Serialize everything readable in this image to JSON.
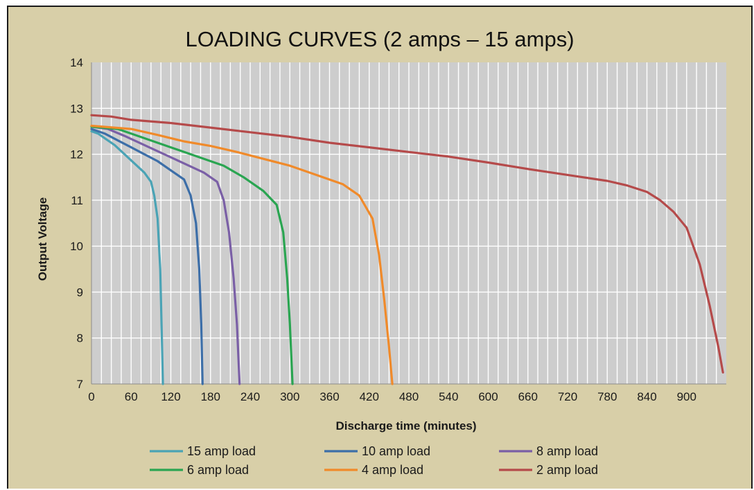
{
  "chart_data": {
    "type": "line",
    "title": "LOADING CURVES (2 amps – 15 amps)",
    "xlabel": "Discharge time (minutes)",
    "ylabel": "Output Voltage",
    "xlim": [
      0,
      960
    ],
    "ylim": [
      7,
      14
    ],
    "x_ticks": [
      "0",
      "60",
      "120",
      "180",
      "240",
      "300",
      "360",
      "420",
      "480",
      "540",
      "600",
      "660",
      "720",
      "780",
      "840",
      "900"
    ],
    "x_tick_values": [
      0,
      60,
      120,
      180,
      240,
      300,
      360,
      420,
      480,
      540,
      600,
      660,
      720,
      780,
      840,
      900
    ],
    "y_ticks": [
      "7",
      "8",
      "9",
      "10",
      "11",
      "12",
      "13",
      "14"
    ],
    "y_tick_values": [
      7,
      8,
      9,
      10,
      11,
      12,
      13,
      14
    ],
    "grid": true,
    "legend_position": "bottom",
    "series": [
      {
        "name": "15 amp load",
        "color": "#4aa3b5",
        "points": [
          [
            0,
            12.5
          ],
          [
            10,
            12.45
          ],
          [
            20,
            12.35
          ],
          [
            35,
            12.2
          ],
          [
            50,
            12.0
          ],
          [
            65,
            11.8
          ],
          [
            80,
            11.6
          ],
          [
            90,
            11.4
          ],
          [
            95,
            11.1
          ],
          [
            100,
            10.6
          ],
          [
            104,
            9.5
          ],
          [
            106,
            8.3
          ],
          [
            108,
            7.0
          ]
        ]
      },
      {
        "name": "10 amp load",
        "color": "#3c6ea8",
        "points": [
          [
            0,
            12.55
          ],
          [
            20,
            12.45
          ],
          [
            40,
            12.3
          ],
          [
            60,
            12.15
          ],
          [
            80,
            12.0
          ],
          [
            100,
            11.85
          ],
          [
            120,
            11.65
          ],
          [
            140,
            11.45
          ],
          [
            150,
            11.1
          ],
          [
            158,
            10.5
          ],
          [
            163,
            9.5
          ],
          [
            166,
            8.3
          ],
          [
            168,
            7.0
          ]
        ]
      },
      {
        "name": "8 amp load",
        "color": "#7a5fa6",
        "points": [
          [
            0,
            12.6
          ],
          [
            25,
            12.55
          ],
          [
            50,
            12.4
          ],
          [
            80,
            12.2
          ],
          [
            110,
            12.0
          ],
          [
            140,
            11.8
          ],
          [
            170,
            11.6
          ],
          [
            190,
            11.4
          ],
          [
            200,
            11.0
          ],
          [
            208,
            10.3
          ],
          [
            215,
            9.3
          ],
          [
            220,
            8.3
          ],
          [
            224,
            7.0
          ]
        ]
      },
      {
        "name": "6 amp load",
        "color": "#2aa551",
        "points": [
          [
            0,
            12.6
          ],
          [
            40,
            12.55
          ],
          [
            80,
            12.35
          ],
          [
            120,
            12.15
          ],
          [
            160,
            11.95
          ],
          [
            200,
            11.75
          ],
          [
            230,
            11.5
          ],
          [
            260,
            11.2
          ],
          [
            280,
            10.9
          ],
          [
            290,
            10.3
          ],
          [
            296,
            9.3
          ],
          [
            300,
            8.3
          ],
          [
            304,
            7.0
          ]
        ]
      },
      {
        "name": "4 amp load",
        "color": "#f08a2a",
        "points": [
          [
            0,
            12.62
          ],
          [
            60,
            12.55
          ],
          [
            100,
            12.42
          ],
          [
            140,
            12.28
          ],
          [
            180,
            12.18
          ],
          [
            220,
            12.05
          ],
          [
            260,
            11.9
          ],
          [
            300,
            11.75
          ],
          [
            340,
            11.55
          ],
          [
            380,
            11.35
          ],
          [
            405,
            11.1
          ],
          [
            425,
            10.6
          ],
          [
            435,
            9.8
          ],
          [
            443,
            8.8
          ],
          [
            450,
            7.8
          ],
          [
            455,
            7.0
          ]
        ]
      },
      {
        "name": "2 amp load",
        "color": "#b54a4a",
        "points": [
          [
            0,
            12.85
          ],
          [
            30,
            12.82
          ],
          [
            60,
            12.75
          ],
          [
            120,
            12.68
          ],
          [
            180,
            12.58
          ],
          [
            240,
            12.48
          ],
          [
            300,
            12.38
          ],
          [
            360,
            12.25
          ],
          [
            420,
            12.15
          ],
          [
            480,
            12.05
          ],
          [
            540,
            11.95
          ],
          [
            600,
            11.82
          ],
          [
            660,
            11.68
          ],
          [
            720,
            11.55
          ],
          [
            780,
            11.42
          ],
          [
            810,
            11.32
          ],
          [
            840,
            11.18
          ],
          [
            860,
            11.0
          ],
          [
            880,
            10.75
          ],
          [
            900,
            10.4
          ],
          [
            920,
            9.6
          ],
          [
            935,
            8.7
          ],
          [
            948,
            7.8
          ],
          [
            955,
            7.25
          ]
        ]
      }
    ]
  }
}
